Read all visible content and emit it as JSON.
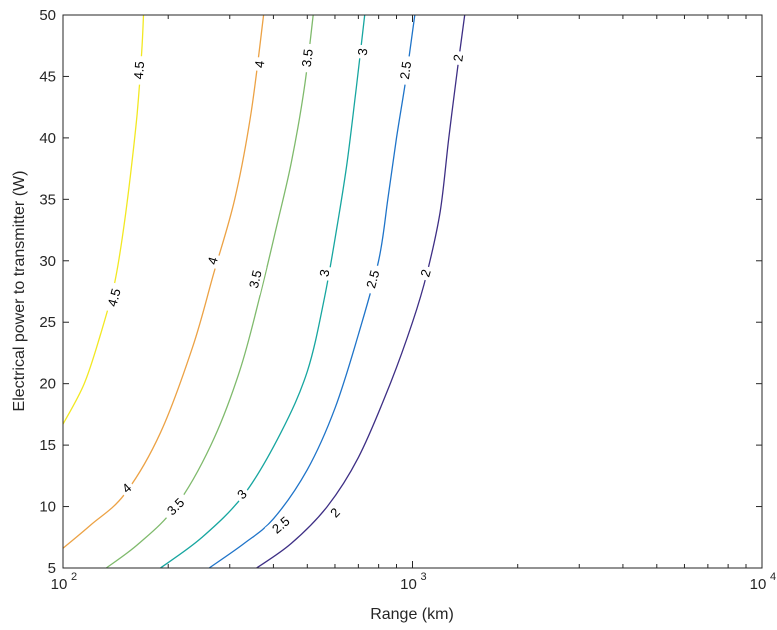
{
  "chart_data": {
    "type": "contour",
    "xlabel": "Range (km)",
    "ylabel": "Electrical power to transmitter (W)",
    "xscale": "log",
    "xlim": [
      100,
      10000
    ],
    "ylim": [
      5,
      50
    ],
    "x_ticks": [
      {
        "value": 100,
        "base": "10",
        "exp": "2"
      },
      {
        "value": 1000,
        "base": "10",
        "exp": "3"
      },
      {
        "value": 10000,
        "base": "10",
        "exp": "4"
      }
    ],
    "y_ticks": [
      {
        "value": 5,
        "label": "5"
      },
      {
        "value": 10,
        "label": "10"
      },
      {
        "value": 15,
        "label": "15"
      },
      {
        "value": 20,
        "label": "20"
      },
      {
        "value": 25,
        "label": "25"
      },
      {
        "value": 30,
        "label": "30"
      },
      {
        "value": 35,
        "label": "35"
      },
      {
        "value": 40,
        "label": "40"
      },
      {
        "value": 45,
        "label": "45"
      },
      {
        "value": 50,
        "label": "50"
      }
    ],
    "grid": false,
    "series": [
      {
        "level_label": "2",
        "color": "#3e2f85",
        "points": [
          [
            358,
            5
          ],
          [
            450,
            7
          ],
          [
            570,
            10
          ],
          [
            700,
            14
          ],
          [
            850,
            19.5
          ],
          [
            1000,
            25
          ],
          [
            1100,
            29
          ],
          [
            1200,
            34
          ],
          [
            1270,
            40
          ],
          [
            1350,
            46
          ],
          [
            1410,
            50
          ]
        ],
        "labels": [
          [
            600,
            9.5
          ],
          [
            1090,
            29
          ],
          [
            1350,
            46.5
          ]
        ]
      },
      {
        "level_label": "2.5",
        "color": "#1f74c9",
        "points": [
          [
            262,
            5
          ],
          [
            330,
            7
          ],
          [
            400,
            9
          ],
          [
            500,
            13
          ],
          [
            600,
            18
          ],
          [
            700,
            24
          ],
          [
            800,
            30
          ],
          [
            850,
            35
          ],
          [
            900,
            40
          ],
          [
            960,
            45
          ],
          [
            1015,
            50
          ]
        ],
        "labels": [
          [
            420,
            8.5
          ],
          [
            770,
            28.5
          ],
          [
            955,
            45.5
          ]
        ]
      },
      {
        "level_label": "3",
        "color": "#17a6a0",
        "points": [
          [
            190,
            5
          ],
          [
            250,
            7.5
          ],
          [
            330,
            11
          ],
          [
            420,
            16
          ],
          [
            500,
            21
          ],
          [
            560,
            27
          ],
          [
            610,
            33
          ],
          [
            650,
            38
          ],
          [
            690,
            44
          ],
          [
            730,
            50
          ]
        ],
        "labels": [
          [
            325,
            11
          ],
          [
            560,
            29
          ],
          [
            720,
            47
          ]
        ]
      },
      {
        "level_label": "3.5",
        "color": "#7fba6c",
        "points": [
          [
            133,
            5
          ],
          [
            165,
            7
          ],
          [
            210,
            10
          ],
          [
            265,
            15
          ],
          [
            320,
            21
          ],
          [
            365,
            27
          ],
          [
            410,
            33
          ],
          [
            450,
            38
          ],
          [
            490,
            44
          ],
          [
            520,
            50
          ]
        ],
        "labels": [
          [
            210,
            10
          ],
          [
            355,
            28.5
          ],
          [
            500,
            46.5
          ]
        ]
      },
      {
        "level_label": "4",
        "color": "#eca245",
        "points": [
          [
            100,
            6.6
          ],
          [
            120,
            8.5
          ],
          [
            150,
            11
          ],
          [
            190,
            16
          ],
          [
            235,
            23
          ],
          [
            270,
            29
          ],
          [
            310,
            35
          ],
          [
            345,
            42
          ],
          [
            375,
            50
          ]
        ],
        "labels": [
          [
            152,
            11.5
          ],
          [
            268,
            30
          ],
          [
            365,
            46
          ]
        ]
      },
      {
        "level_label": "4.5",
        "color": "#f2e822",
        "points": [
          [
            100,
            16.7
          ],
          [
            115,
            20
          ],
          [
            128,
            24
          ],
          [
            140,
            28
          ],
          [
            148,
            32
          ],
          [
            156,
            37
          ],
          [
            163,
            42
          ],
          [
            168,
            47
          ],
          [
            170,
            50
          ]
        ],
        "labels": [
          [
            140,
            27
          ],
          [
            165,
            45.5
          ]
        ]
      }
    ]
  }
}
